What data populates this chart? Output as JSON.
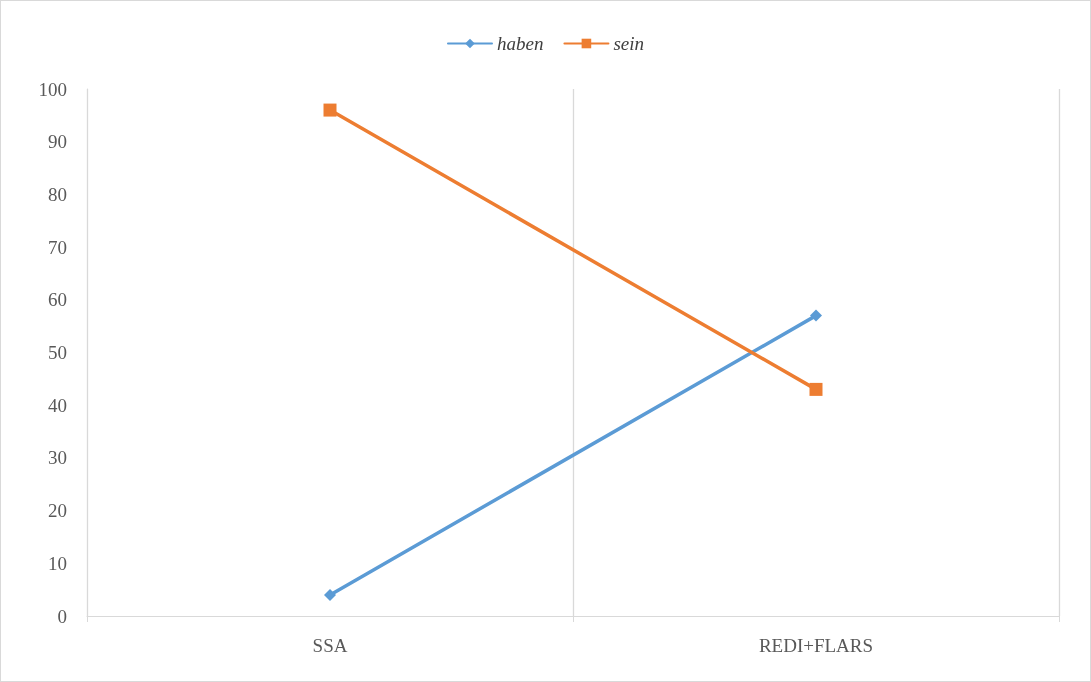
{
  "chart_data": {
    "type": "line",
    "categories": [
      "SSA",
      "REDI+FLARS"
    ],
    "series": [
      {
        "name": "haben",
        "color": "#5b9bd5",
        "marker": "diamond",
        "values": [
          4,
          57
        ]
      },
      {
        "name": "sein",
        "color": "#ed7d31",
        "marker": "square",
        "values": [
          96,
          43
        ]
      }
    ],
    "ylim": [
      0,
      100
    ],
    "yticks": [
      0,
      10,
      20,
      30,
      40,
      50,
      60,
      70,
      80,
      90,
      100
    ],
    "grid": "x",
    "legend": "top",
    "line_style": "solid"
  }
}
